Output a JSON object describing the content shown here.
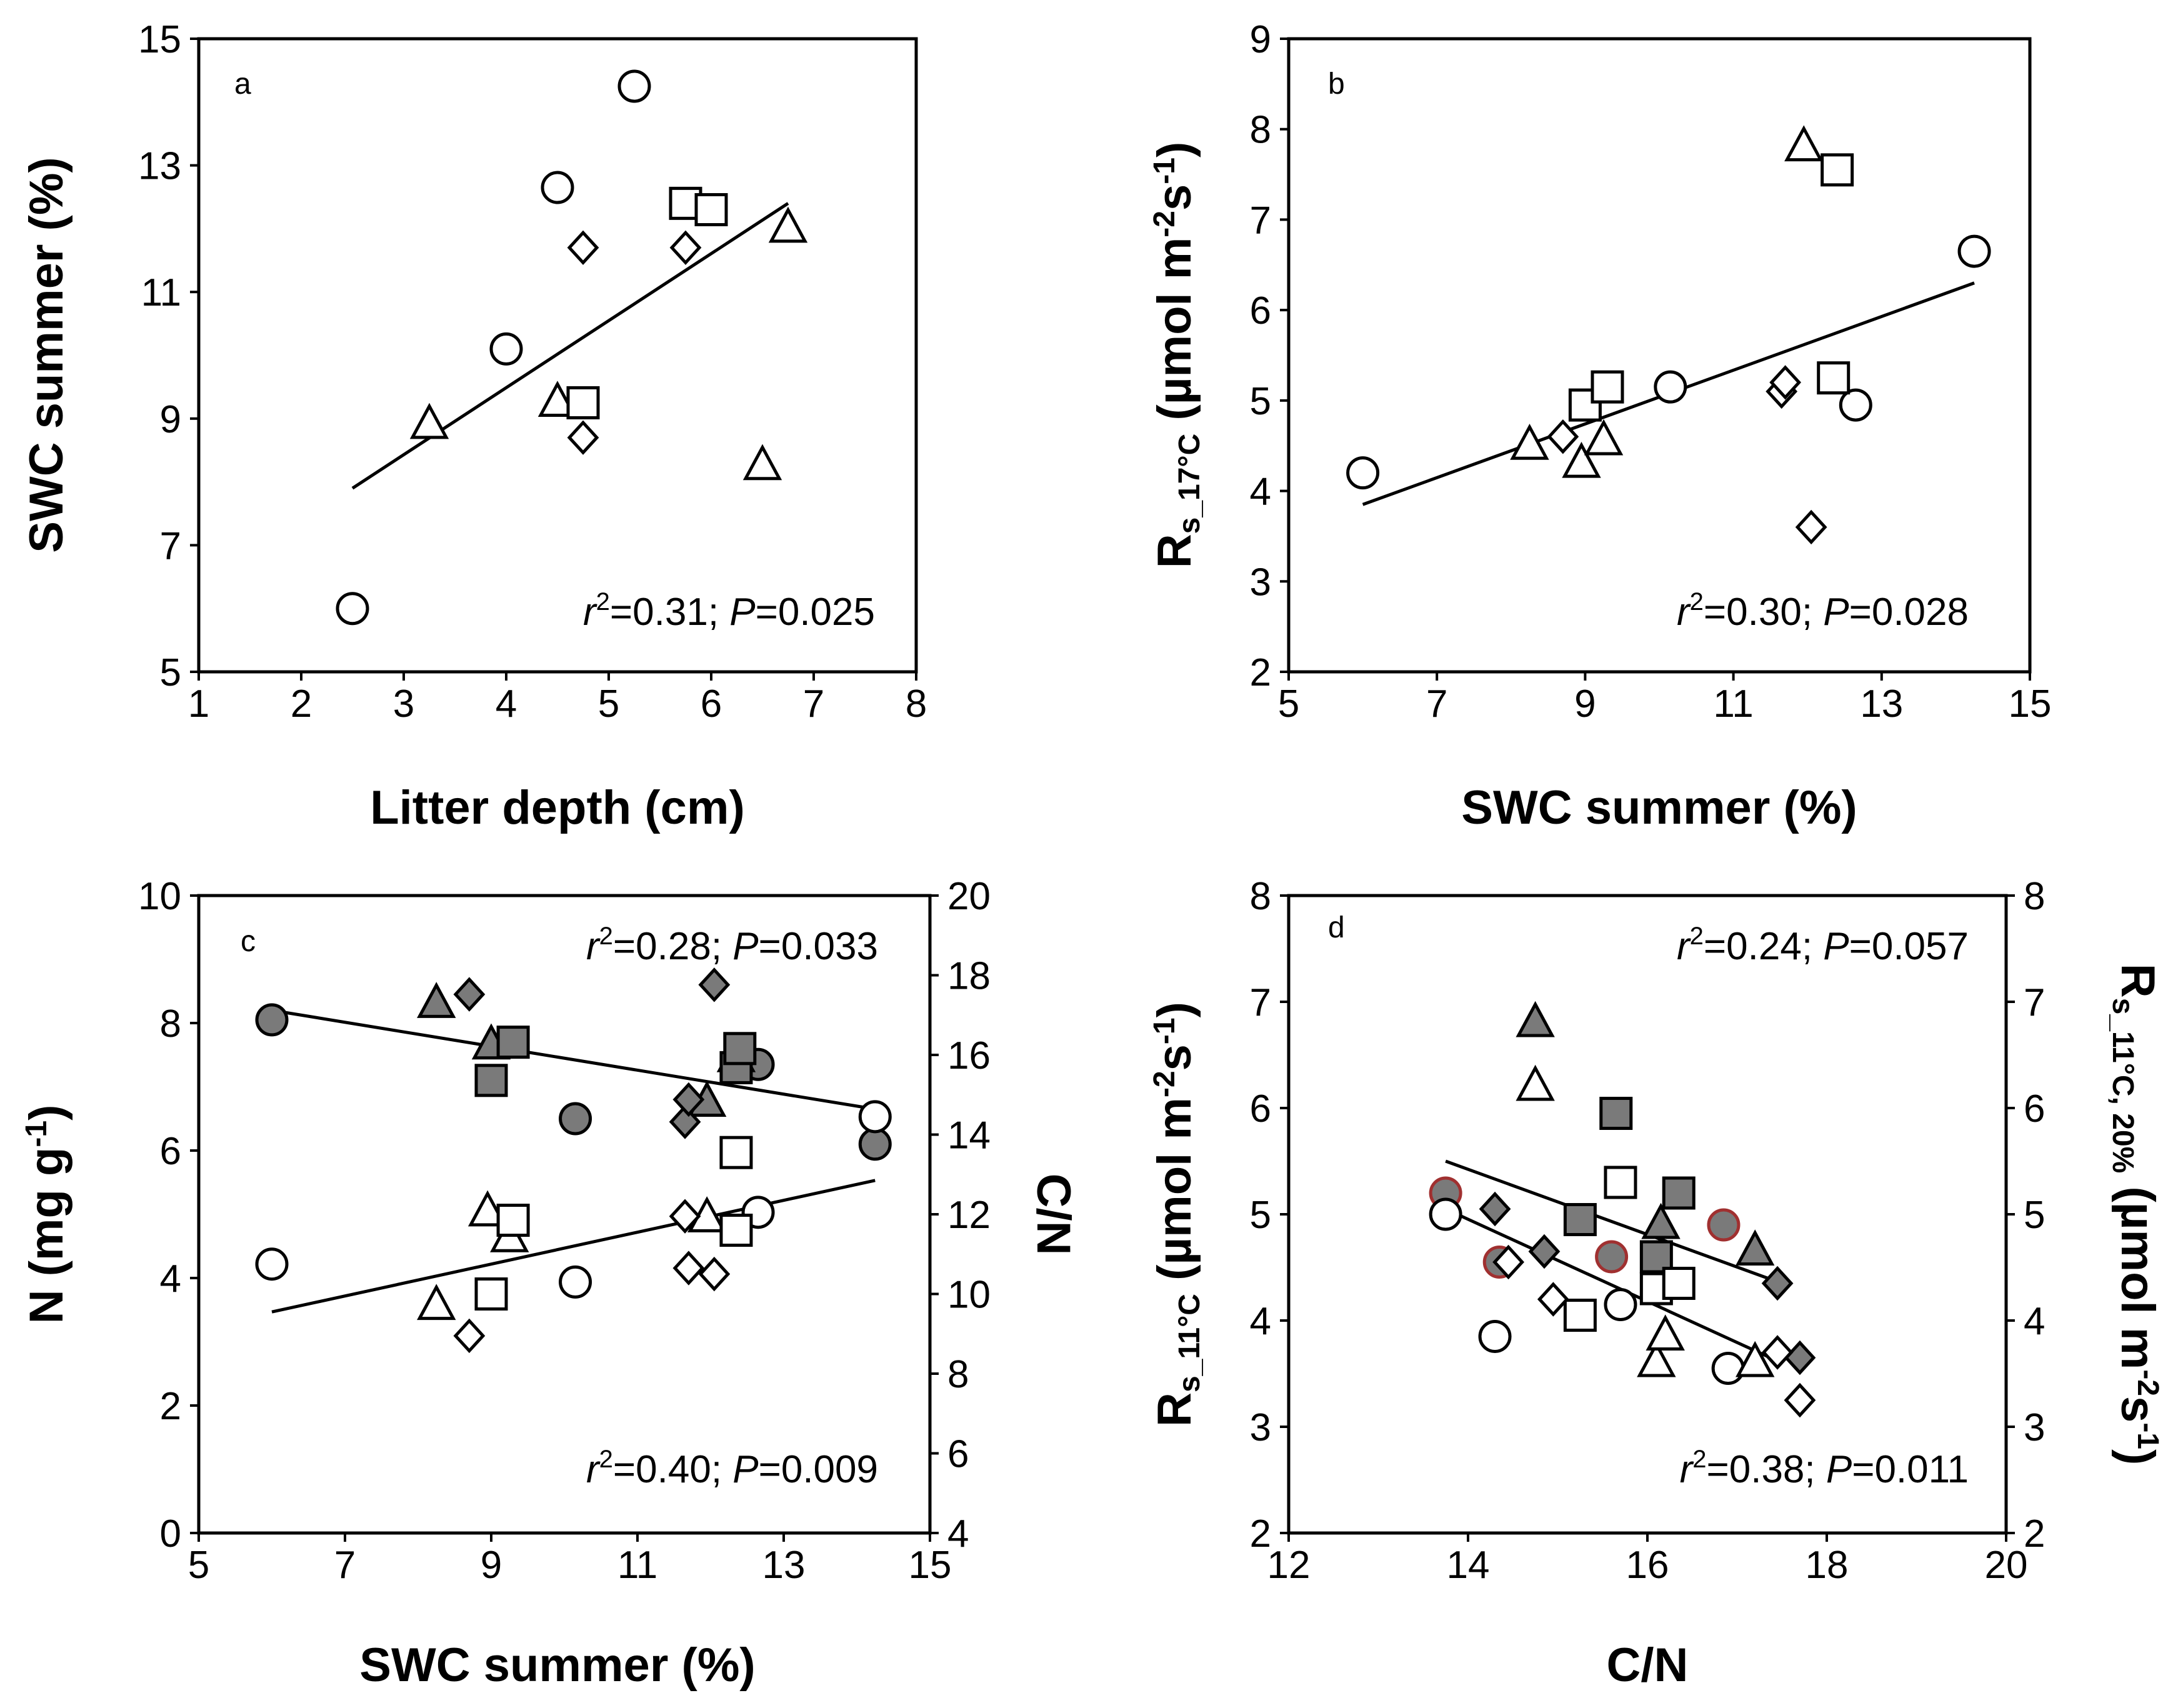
{
  "chart_data": [
    {
      "panel": "a",
      "type": "scatter",
      "xlabel": "Litter depth (cm)",
      "ylabel": "SWC summer (%)",
      "xlim": [
        1,
        8
      ],
      "xticks": [
        1,
        2,
        3,
        4,
        5,
        6,
        7,
        8
      ],
      "ylim": [
        5,
        15
      ],
      "yticks": [
        5,
        7,
        9,
        11,
        13,
        15
      ],
      "points": [
        {
          "x": 2.5,
          "y": 6.0,
          "shape": "circle",
          "fill": "open"
        },
        {
          "x": 4.0,
          "y": 10.1,
          "shape": "circle",
          "fill": "open"
        },
        {
          "x": 4.5,
          "y": 12.65,
          "shape": "circle",
          "fill": "open"
        },
        {
          "x": 5.25,
          "y": 14.25,
          "shape": "circle",
          "fill": "open"
        },
        {
          "x": 3.25,
          "y": 8.9,
          "shape": "triangle",
          "fill": "open"
        },
        {
          "x": 4.5,
          "y": 9.25,
          "shape": "triangle",
          "fill": "open"
        },
        {
          "x": 6.5,
          "y": 8.25,
          "shape": "triangle",
          "fill": "open"
        },
        {
          "x": 6.75,
          "y": 12.0,
          "shape": "triangle",
          "fill": "open"
        },
        {
          "x": 4.75,
          "y": 9.25,
          "shape": "square",
          "fill": "open"
        },
        {
          "x": 5.75,
          "y": 12.4,
          "shape": "square",
          "fill": "open"
        },
        {
          "x": 6.0,
          "y": 12.3,
          "shape": "square",
          "fill": "open"
        },
        {
          "x": 4.75,
          "y": 8.7,
          "shape": "diamond",
          "fill": "open"
        },
        {
          "x": 4.75,
          "y": 11.7,
          "shape": "diamond",
          "fill": "open"
        },
        {
          "x": 5.75,
          "y": 11.7,
          "shape": "diamond",
          "fill": "open"
        }
      ],
      "fits": [
        {
          "x1": 2.5,
          "y1": 7.9,
          "x2": 6.75,
          "y2": 12.4
        }
      ],
      "stats": [
        {
          "r2": "0.31",
          "p": "0.025"
        }
      ]
    },
    {
      "panel": "b",
      "type": "scatter",
      "xlabel": "SWC summer (%)",
      "ylabel_main": "R",
      "ylabel_sub": "s_17°C",
      "ylabel_unit": "(µmol m",
      "ylabel_exp1": "-2",
      "ylabel_mid": "s",
      "ylabel_exp2": "-1",
      "ylabel_end": ")",
      "xlim": [
        5,
        15
      ],
      "xticks": [
        5,
        7,
        9,
        11,
        13,
        15
      ],
      "ylim": [
        2,
        9
      ],
      "yticks": [
        2,
        3,
        4,
        5,
        6,
        7,
        8,
        9
      ],
      "points": [
        {
          "x": 6.0,
          "y": 4.2,
          "shape": "circle",
          "fill": "open"
        },
        {
          "x": 10.15,
          "y": 5.15,
          "shape": "circle",
          "fill": "open"
        },
        {
          "x": 12.65,
          "y": 4.95,
          "shape": "circle",
          "fill": "open"
        },
        {
          "x": 14.25,
          "y": 6.65,
          "shape": "circle",
          "fill": "open"
        },
        {
          "x": 8.25,
          "y": 4.5,
          "shape": "triangle",
          "fill": "open"
        },
        {
          "x": 8.95,
          "y": 4.3,
          "shape": "triangle",
          "fill": "open"
        },
        {
          "x": 9.25,
          "y": 4.55,
          "shape": "triangle",
          "fill": "open"
        },
        {
          "x": 11.95,
          "y": 7.8,
          "shape": "triangle",
          "fill": "open"
        },
        {
          "x": 9.0,
          "y": 4.95,
          "shape": "square",
          "fill": "open"
        },
        {
          "x": 9.3,
          "y": 5.15,
          "shape": "square",
          "fill": "open"
        },
        {
          "x": 12.35,
          "y": 5.25,
          "shape": "square",
          "fill": "open"
        },
        {
          "x": 12.4,
          "y": 7.55,
          "shape": "square",
          "fill": "open"
        },
        {
          "x": 8.7,
          "y": 4.6,
          "shape": "diamond",
          "fill": "open"
        },
        {
          "x": 11.65,
          "y": 5.1,
          "shape": "diamond",
          "fill": "open"
        },
        {
          "x": 11.7,
          "y": 5.2,
          "shape": "diamond",
          "fill": "open"
        },
        {
          "x": 12.05,
          "y": 3.6,
          "shape": "diamond",
          "fill": "open"
        }
      ],
      "fits": [
        {
          "x1": 6.0,
          "y1": 3.85,
          "x2": 14.25,
          "y2": 6.3
        }
      ],
      "stats": [
        {
          "r2": "0.30",
          "p": "0.028"
        }
      ]
    },
    {
      "panel": "c",
      "type": "scatter",
      "xlabel": "SWC summer (%)",
      "ylabel_left": "N (mg g",
      "ylabel_left_exp": "-1",
      "ylabel_left_end": ")",
      "ylabel_right": "C/N",
      "xlim": [
        5,
        15
      ],
      "xticks": [
        5,
        7,
        9,
        11,
        13,
        15
      ],
      "ylim": [
        0,
        10
      ],
      "yticks": [
        0,
        2,
        4,
        6,
        8,
        10
      ],
      "ylim_right": [
        4,
        20
      ],
      "yticks_right": [
        4,
        6,
        8,
        10,
        12,
        14,
        16,
        18,
        20
      ],
      "series": [
        {
          "name": "N",
          "axis": "left",
          "points": [
            {
              "x": 6.0,
              "y": 8.05,
              "shape": "circle",
              "fill": "grey"
            },
            {
              "x": 10.15,
              "y": 6.5,
              "shape": "circle",
              "fill": "grey"
            },
            {
              "x": 12.65,
              "y": 7.35,
              "shape": "circle",
              "fill": "grey"
            },
            {
              "x": 14.25,
              "y": 6.1,
              "shape": "circle",
              "fill": "grey"
            },
            {
              "x": 8.25,
              "y": 8.3,
              "shape": "triangle",
              "fill": "grey"
            },
            {
              "x": 9.0,
              "y": 7.65,
              "shape": "triangle",
              "fill": "grey"
            },
            {
              "x": 11.95,
              "y": 6.75,
              "shape": "triangle",
              "fill": "grey"
            },
            {
              "x": 12.35,
              "y": 7.45,
              "shape": "triangle",
              "fill": "grey"
            },
            {
              "x": 9.0,
              "y": 7.1,
              "shape": "square",
              "fill": "grey"
            },
            {
              "x": 9.3,
              "y": 7.7,
              "shape": "square",
              "fill": "grey"
            },
            {
              "x": 12.35,
              "y": 7.3,
              "shape": "square",
              "fill": "grey"
            },
            {
              "x": 12.4,
              "y": 7.6,
              "shape": "square",
              "fill": "grey"
            },
            {
              "x": 8.7,
              "y": 8.45,
              "shape": "diamond",
              "fill": "grey"
            },
            {
              "x": 11.65,
              "y": 6.45,
              "shape": "diamond",
              "fill": "grey"
            },
            {
              "x": 11.7,
              "y": 6.8,
              "shape": "diamond",
              "fill": "grey"
            },
            {
              "x": 12.05,
              "y": 8.6,
              "shape": "diamond",
              "fill": "grey"
            }
          ]
        },
        {
          "name": "C/N",
          "axis": "right",
          "points": [
            {
              "x": 6.0,
              "y": 10.75,
              "shape": "circle",
              "fill": "open"
            },
            {
              "x": 10.15,
              "y": 10.3,
              "shape": "circle",
              "fill": "open"
            },
            {
              "x": 12.65,
              "y": 12.05,
              "shape": "circle",
              "fill": "open"
            },
            {
              "x": 14.25,
              "y": 14.45,
              "shape": "circle",
              "fill": "open"
            },
            {
              "x": 8.25,
              "y": 9.7,
              "shape": "triangle",
              "fill": "open"
            },
            {
              "x": 8.95,
              "y": 12.05,
              "shape": "triangle",
              "fill": "open"
            },
            {
              "x": 9.25,
              "y": 11.4,
              "shape": "triangle",
              "fill": "open"
            },
            {
              "x": 11.95,
              "y": 11.9,
              "shape": "triangle",
              "fill": "open"
            },
            {
              "x": 9.0,
              "y": 10.0,
              "shape": "square",
              "fill": "open"
            },
            {
              "x": 9.3,
              "y": 11.85,
              "shape": "square",
              "fill": "open"
            },
            {
              "x": 12.35,
              "y": 11.6,
              "shape": "square",
              "fill": "open"
            },
            {
              "x": 12.35,
              "y": 13.55,
              "shape": "square",
              "fill": "open"
            },
            {
              "x": 8.7,
              "y": 8.95,
              "shape": "diamond",
              "fill": "open"
            },
            {
              "x": 11.65,
              "y": 11.95,
              "shape": "diamond",
              "fill": "open"
            },
            {
              "x": 11.7,
              "y": 10.65,
              "shape": "diamond",
              "fill": "open"
            },
            {
              "x": 12.05,
              "y": 10.5,
              "shape": "diamond",
              "fill": "open"
            }
          ]
        }
      ],
      "fits": [
        {
          "axis": "left",
          "x1": 6.0,
          "y1": 8.2,
          "x2": 14.25,
          "y2": 6.65
        },
        {
          "axis": "right",
          "x1": 6.0,
          "y1": 9.55,
          "x2": 14.25,
          "y2": 12.85
        }
      ],
      "stats": [
        {
          "r2": "0.28",
          "p": "0.033"
        },
        {
          "r2": "0.40",
          "p": "0.009"
        }
      ]
    },
    {
      "panel": "d",
      "type": "scatter",
      "xlabel": "C/N",
      "ylabel_left_main": "R",
      "ylabel_left_sub": "s_11°C",
      "ylabel_left_unit": "(µmol m",
      "ylabel_left_exp1": "-2",
      "ylabel_left_mid": "s",
      "ylabel_left_exp2": "-1",
      "ylabel_left_end": ")",
      "ylabel_right_main": "R",
      "ylabel_right_sub": "s_11°C, 20%",
      "ylabel_right_unit": "(µmol m",
      "ylabel_right_exp1": "-2",
      "ylabel_right_mid": "s",
      "ylabel_right_exp2": "-1",
      "ylabel_right_end": ")",
      "xlim": [
        12,
        20
      ],
      "xticks": [
        12,
        14,
        16,
        18,
        20
      ],
      "ylim": [
        2,
        8
      ],
      "yticks": [
        2,
        3,
        4,
        5,
        6,
        7,
        8
      ],
      "yticks_right": [
        2,
        3,
        4,
        5,
        6,
        7,
        8
      ],
      "series": [
        {
          "name": "Rs_11°C,20%",
          "axis": "right",
          "points": [
            {
              "x": 13.75,
              "y": 5.2,
              "shape": "circle",
              "fill": "grey-red"
            },
            {
              "x": 14.35,
              "y": 4.55,
              "shape": "circle",
              "fill": "grey-red"
            },
            {
              "x": 15.6,
              "y": 4.6,
              "shape": "circle",
              "fill": "grey-red"
            },
            {
              "x": 16.85,
              "y": 4.9,
              "shape": "circle",
              "fill": "grey-red"
            },
            {
              "x": 14.75,
              "y": 6.8,
              "shape": "triangle",
              "fill": "grey"
            },
            {
              "x": 16.15,
              "y": 4.9,
              "shape": "triangle",
              "fill": "grey"
            },
            {
              "x": 17.2,
              "y": 4.65,
              "shape": "triangle",
              "fill": "grey"
            },
            {
              "x": 16.15,
              "y": 4.45,
              "shape": "triangle",
              "fill": "grey"
            },
            {
              "x": 15.25,
              "y": 4.95,
              "shape": "square",
              "fill": "grey"
            },
            {
              "x": 15.65,
              "y": 5.95,
              "shape": "square",
              "fill": "grey"
            },
            {
              "x": 16.1,
              "y": 4.6,
              "shape": "square",
              "fill": "grey"
            },
            {
              "x": 16.35,
              "y": 5.2,
              "shape": "square",
              "fill": "grey"
            },
            {
              "x": 14.3,
              "y": 5.05,
              "shape": "diamond",
              "fill": "grey"
            },
            {
              "x": 14.85,
              "y": 4.65,
              "shape": "diamond",
              "fill": "grey"
            },
            {
              "x": 17.45,
              "y": 4.35,
              "shape": "diamond",
              "fill": "grey"
            },
            {
              "x": 17.7,
              "y": 3.65,
              "shape": "diamond",
              "fill": "grey"
            }
          ]
        },
        {
          "name": "Rs_11°C",
          "axis": "left",
          "points": [
            {
              "x": 13.75,
              "y": 5.0,
              "shape": "circle",
              "fill": "open"
            },
            {
              "x": 14.3,
              "y": 3.85,
              "shape": "circle",
              "fill": "open"
            },
            {
              "x": 15.7,
              "y": 4.15,
              "shape": "circle",
              "fill": "open"
            },
            {
              "x": 16.9,
              "y": 3.55,
              "shape": "circle",
              "fill": "open"
            },
            {
              "x": 14.75,
              "y": 6.2,
              "shape": "triangle",
              "fill": "open"
            },
            {
              "x": 16.1,
              "y": 3.6,
              "shape": "triangle",
              "fill": "open"
            },
            {
              "x": 16.2,
              "y": 3.85,
              "shape": "triangle",
              "fill": "open"
            },
            {
              "x": 17.2,
              "y": 3.6,
              "shape": "triangle",
              "fill": "open"
            },
            {
              "x": 15.25,
              "y": 4.05,
              "shape": "square",
              "fill": "open"
            },
            {
              "x": 15.7,
              "y": 5.3,
              "shape": "square",
              "fill": "open"
            },
            {
              "x": 16.1,
              "y": 4.3,
              "shape": "square",
              "fill": "open"
            },
            {
              "x": 16.35,
              "y": 4.35,
              "shape": "square",
              "fill": "open"
            },
            {
              "x": 14.45,
              "y": 4.55,
              "shape": "diamond",
              "fill": "open"
            },
            {
              "x": 14.95,
              "y": 4.2,
              "shape": "diamond",
              "fill": "open"
            },
            {
              "x": 17.45,
              "y": 3.7,
              "shape": "diamond",
              "fill": "open"
            },
            {
              "x": 17.7,
              "y": 3.25,
              "shape": "diamond",
              "fill": "open"
            }
          ]
        }
      ],
      "fits": [
        {
          "axis": "right",
          "x1": 13.75,
          "y1": 5.5,
          "x2": 17.5,
          "y2": 4.35
        },
        {
          "axis": "left",
          "x1": 13.75,
          "y1": 5.05,
          "x2": 17.5,
          "y2": 3.6
        }
      ],
      "stats": [
        {
          "r2": "0.24",
          "p": "0.057"
        },
        {
          "r2": "0.38",
          "p": "0.011"
        }
      ]
    }
  ],
  "colors": {
    "grey_fill": "#7a7a7a",
    "red_edge": "#a03030",
    "open_fill": "#ffffff",
    "line": "#000000"
  }
}
